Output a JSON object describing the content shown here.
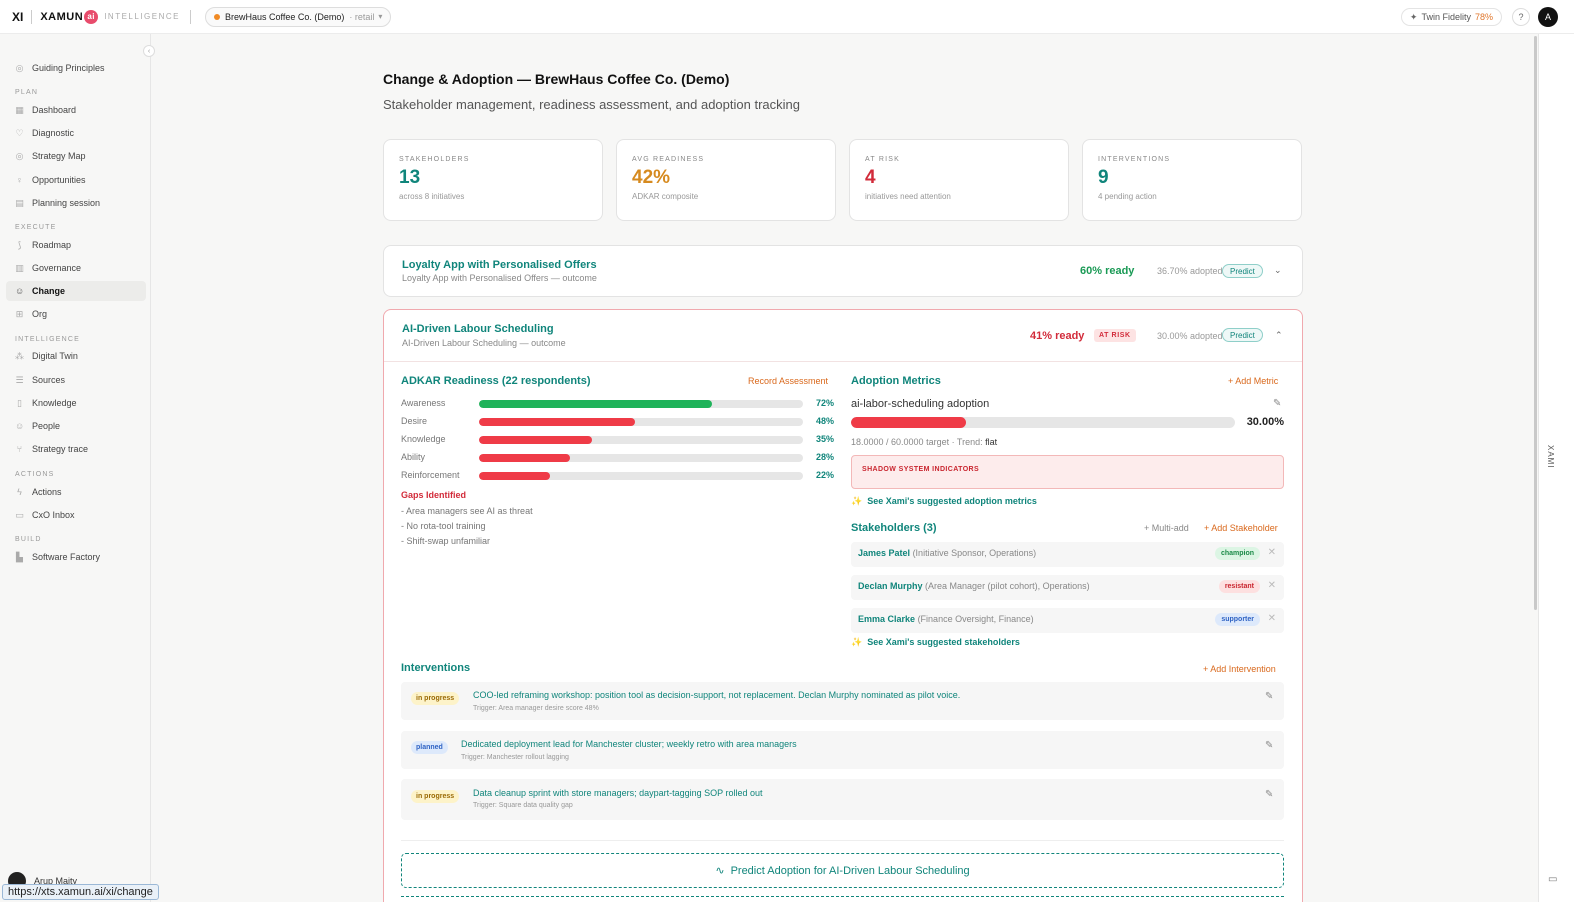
{
  "topbar": {
    "logo_xi": "XI",
    "logo_name": "XAMUN",
    "logo_ai": "ai",
    "logo_tag": "INTELLIGENCE",
    "tenant": "BrewHaus Coffee Co. (Demo)",
    "tenant_sector": "retail",
    "fidelity_label": "Twin Fidelity",
    "fidelity_value": "78%",
    "help": "?",
    "avatar": "A"
  },
  "sidebar": {
    "guiding": "Guiding Principles",
    "sections": {
      "plan": "PLAN",
      "execute": "EXECUTE",
      "intelligence": "INTELLIGENCE",
      "actions": "ACTIONS",
      "build": "BUILD"
    },
    "items": {
      "dashboard": "Dashboard",
      "diagnostic": "Diagnostic",
      "strategy_map": "Strategy Map",
      "opportunities": "Opportunities",
      "planning": "Planning session",
      "roadmap": "Roadmap",
      "governance": "Governance",
      "change": "Change",
      "org": "Org",
      "digital_twin": "Digital Twin",
      "sources": "Sources",
      "knowledge": "Knowledge",
      "people": "People",
      "strategy_trace": "Strategy trace",
      "actions": "Actions",
      "cxo_inbox": "CxO Inbox",
      "software_factory": "Software Factory"
    },
    "user": "Arup Maity",
    "url": "https://xts.xamun.ai/xi/change"
  },
  "rail": {
    "xami": "XAMI"
  },
  "page": {
    "title": "Change & Adoption — BrewHaus Coffee Co. (Demo)",
    "subtitle": "Stakeholder management, readiness assessment, and adoption tracking"
  },
  "stats": [
    {
      "label": "STAKEHOLDERS",
      "value": "13",
      "sub": "across 8 initiatives",
      "color": "#10857b"
    },
    {
      "label": "AVG READINESS",
      "value": "42%",
      "sub": "ADKAR composite",
      "color": "#d68a1f"
    },
    {
      "label": "AT RISK",
      "value": "4",
      "sub": "initiatives need attention",
      "color": "#d22b3a"
    },
    {
      "label": "INTERVENTIONS",
      "value": "9",
      "sub": "4 pending action",
      "color": "#10857b"
    }
  ],
  "initiative1": {
    "title": "Loyalty App with Personalised Offers",
    "sub": "Loyalty App with Personalised Offers — outcome",
    "ready": "60% ready",
    "adopted": "36.70% adopted",
    "predict": "Predict"
  },
  "initiative2": {
    "title": "AI-Driven Labour Scheduling",
    "sub": "AI-Driven Labour Scheduling — outcome",
    "ready": "41% ready",
    "risk": "AT RISK",
    "adopted": "30.00% adopted",
    "predict": "Predict",
    "adkar": {
      "title": "ADKAR Readiness (22 respondents)",
      "record": "Record Assessment",
      "rows": [
        {
          "label": "Awareness",
          "value": 72,
          "pct": "72%",
          "color": "#1fb35a"
        },
        {
          "label": "Desire",
          "value": 48,
          "pct": "48%",
          "color": "#ef3b47"
        },
        {
          "label": "Knowledge",
          "value": 35,
          "pct": "35%",
          "color": "#ef3b47"
        },
        {
          "label": "Ability",
          "value": 28,
          "pct": "28%",
          "color": "#ef3b47"
        },
        {
          "label": "Reinforcement",
          "value": 22,
          "pct": "22%",
          "color": "#ef3b47"
        }
      ],
      "gaps_title": "Gaps Identified",
      "gaps": [
        "- Area managers see AI as threat",
        "- No rota-tool training",
        "- Shift-swap unfamiliar"
      ]
    },
    "metrics": {
      "title": "Adoption Metrics",
      "add": "+ Add Metric",
      "name": "ai-labor-scheduling adoption",
      "value": 30,
      "pct": "30.00%",
      "target_text": "18.0000 / 60.0000 target · Trend:",
      "trend": "flat",
      "shadow": "SHADOW SYSTEM INDICATORS",
      "suggest": "See Xami's suggested adoption metrics"
    },
    "stakeholders": {
      "title": "Stakeholders (3)",
      "multi": "+ Multi-add",
      "add": "+ Add Stakeholder",
      "rows": [
        {
          "name": "James Patel",
          "role": "(Initiative Sponsor, Operations)",
          "badge": "champion",
          "bg": "#dcf5e4",
          "fg": "#1a8a47"
        },
        {
          "name": "Declan Murphy",
          "role": "(Area Manager (pilot cohort), Operations)",
          "badge": "resistant",
          "bg": "#fde0e0",
          "fg": "#c9252f"
        },
        {
          "name": "Emma Clarke",
          "role": "(Finance Oversight, Finance)",
          "badge": "supporter",
          "bg": "#dde9fb",
          "fg": "#2f63c4"
        }
      ],
      "suggest": "See Xami's suggested stakeholders"
    },
    "interventions": {
      "title": "Interventions",
      "add": "+ Add Intervention",
      "rows": [
        {
          "status": "in progress",
          "bg": "#fdf3c9",
          "fg": "#9a6a05",
          "title": "COO-led reframing workshop: position tool as decision-support, not replacement. Declan Murphy nominated as pilot voice.",
          "trigger": "Trigger: Area manager desire score 48%"
        },
        {
          "status": "planned",
          "bg": "#dde9fb",
          "fg": "#2f63c4",
          "title": "Dedicated deployment lead for Manchester cluster; weekly retro with area managers",
          "trigger": "Trigger: Manchester rollout lagging"
        },
        {
          "status": "in progress",
          "bg": "#fdf3c9",
          "fg": "#9a6a05",
          "title": "Data cleanup sprint with store managers; daypart-tagging SOP rolled out",
          "trigger": "Trigger: Square data quality gap"
        }
      ]
    },
    "predict_cta": "Predict Adoption for AI-Driven Labour Scheduling"
  }
}
